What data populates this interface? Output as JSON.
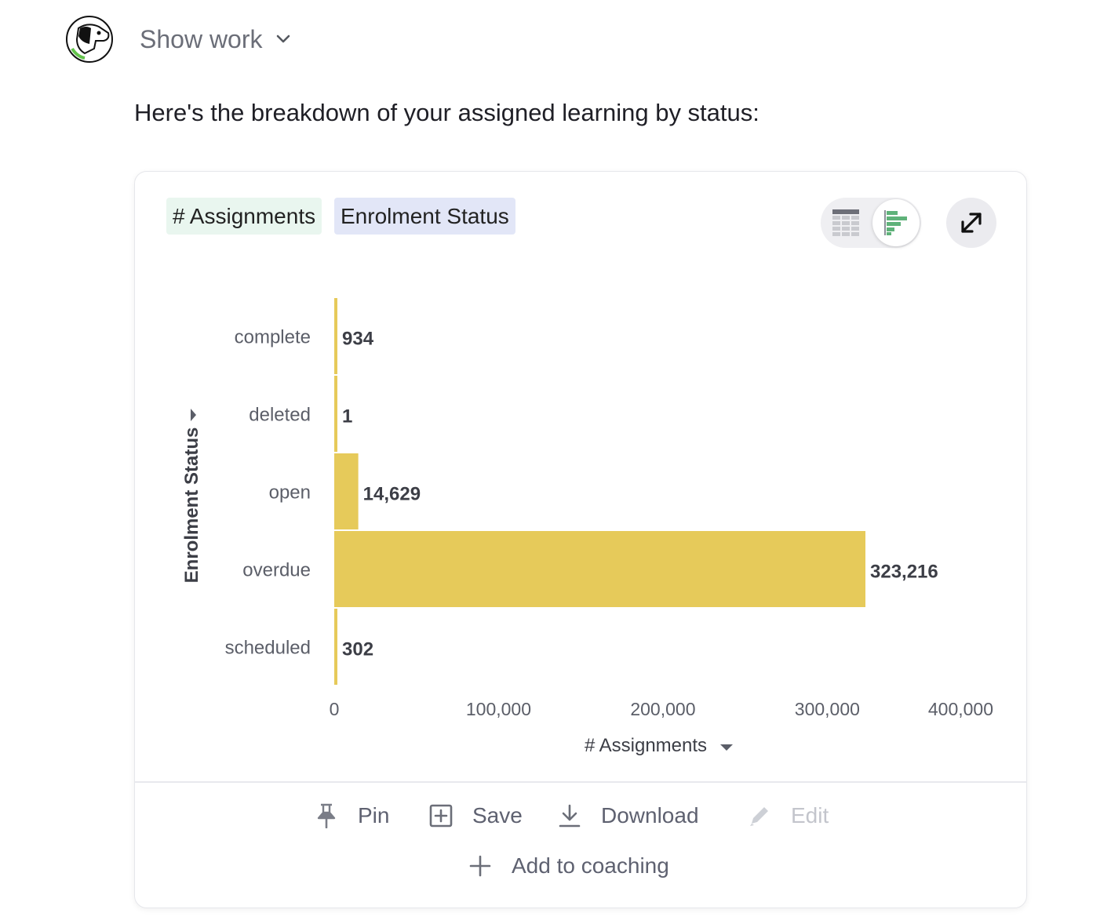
{
  "header": {
    "show_work_label": "Show work"
  },
  "message": {
    "intro": "Here's the breakdown of your assigned learning by status:"
  },
  "card": {
    "chips": {
      "measure": "# Assignments",
      "dimension": "Enrolment Status"
    },
    "view_toggle": {
      "options": [
        "table-view-icon",
        "bar-chart-icon"
      ],
      "selected": "bar-chart-icon"
    },
    "actions": {
      "pin": "Pin",
      "save": "Save",
      "download": "Download",
      "edit": "Edit",
      "add_to_coaching": "Add to coaching"
    }
  },
  "colors": {
    "bar": "#e6ca5a",
    "measure_chip": "#e9f6ef",
    "dimension_chip": "#e2e6f7",
    "table_icon_accent": "#5fb27a"
  },
  "chart_data": {
    "type": "bar",
    "orientation": "horizontal",
    "categories": [
      "complete",
      "deleted",
      "open",
      "overdue",
      "scheduled"
    ],
    "values": [
      934,
      1,
      14629,
      323216,
      302
    ],
    "value_labels": [
      "934",
      "1",
      "14,629",
      "323,216",
      "302"
    ],
    "xlabel": "# Assignments",
    "ylabel": "Enrolment Status",
    "xlim": [
      0,
      400000
    ],
    "xticks": [
      0,
      100000,
      200000,
      300000,
      400000
    ],
    "xtick_labels": [
      "0",
      "100,000",
      "200,000",
      "300,000",
      "400,000"
    ],
    "grid": false,
    "legend": false
  }
}
